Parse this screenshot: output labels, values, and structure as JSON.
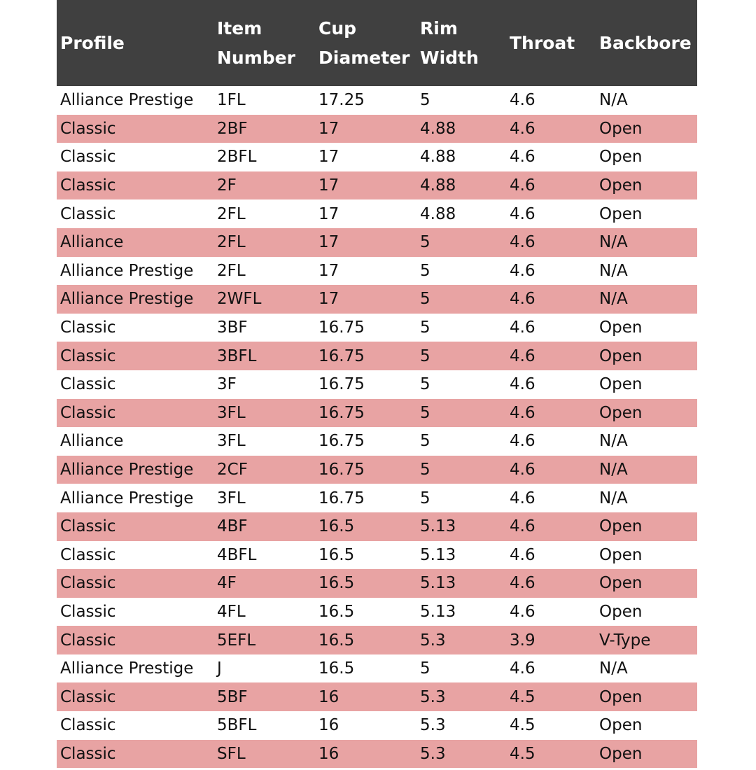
{
  "colors": {
    "header_bg": "#404040",
    "stripe": "#e8a3a3"
  },
  "headers": [
    "Profile",
    "Item Number",
    "Cup Diameter",
    "Rim Width",
    "Throat",
    "Backbore"
  ],
  "rows": [
    [
      "Alliance Prestige",
      "1FL",
      "17.25",
      "5",
      "4.6",
      "N/A"
    ],
    [
      "Classic",
      "2BF",
      "17",
      "4.88",
      "4.6",
      "Open"
    ],
    [
      "Classic",
      "2BFL",
      "17",
      "4.88",
      "4.6",
      "Open"
    ],
    [
      "Classic",
      "2F",
      "17",
      "4.88",
      "4.6",
      "Open"
    ],
    [
      "Classic",
      "2FL",
      "17",
      "4.88",
      "4.6",
      "Open"
    ],
    [
      "Alliance",
      "2FL",
      "17",
      "5",
      "4.6",
      "N/A"
    ],
    [
      "Alliance Prestige",
      "2FL",
      "17",
      "5",
      "4.6",
      "N/A"
    ],
    [
      "Alliance Prestige",
      "2WFL",
      "17",
      "5",
      "4.6",
      "N/A"
    ],
    [
      "Classic",
      "3BF",
      "16.75",
      "5",
      "4.6",
      "Open"
    ],
    [
      "Classic",
      "3BFL",
      "16.75",
      "5",
      "4.6",
      "Open"
    ],
    [
      "Classic",
      "3F",
      "16.75",
      "5",
      "4.6",
      "Open"
    ],
    [
      "Classic",
      "3FL",
      "16.75",
      "5",
      "4.6",
      "Open"
    ],
    [
      "Alliance",
      "3FL",
      "16.75",
      "5",
      "4.6",
      "N/A"
    ],
    [
      "Alliance Prestige",
      "2CF",
      "16.75",
      "5",
      "4.6",
      "N/A"
    ],
    [
      "Alliance Prestige",
      "3FL",
      "16.75",
      "5",
      "4.6",
      "N/A"
    ],
    [
      "Classic",
      "4BF",
      "16.5",
      "5.13",
      "4.6",
      "Open"
    ],
    [
      "Classic",
      "4BFL",
      "16.5",
      "5.13",
      "4.6",
      "Open"
    ],
    [
      "Classic",
      "4F",
      "16.5",
      "5.13",
      "4.6",
      "Open"
    ],
    [
      "Classic",
      "4FL",
      "16.5",
      "5.13",
      "4.6",
      "Open"
    ],
    [
      "Classic",
      "5EFL",
      "16.5",
      "5.3",
      "3.9",
      "V-Type"
    ],
    [
      "Alliance Prestige",
      "J",
      "16.5",
      "5",
      "4.6",
      "N/A"
    ],
    [
      "Classic",
      "5BF",
      "16",
      "5.3",
      "4.5",
      "Open"
    ],
    [
      "Classic",
      "5BFL",
      "16",
      "5.3",
      "4.5",
      "Open"
    ],
    [
      "Classic",
      "SFL",
      "16",
      "5.3",
      "4.5",
      "Open"
    ]
  ]
}
